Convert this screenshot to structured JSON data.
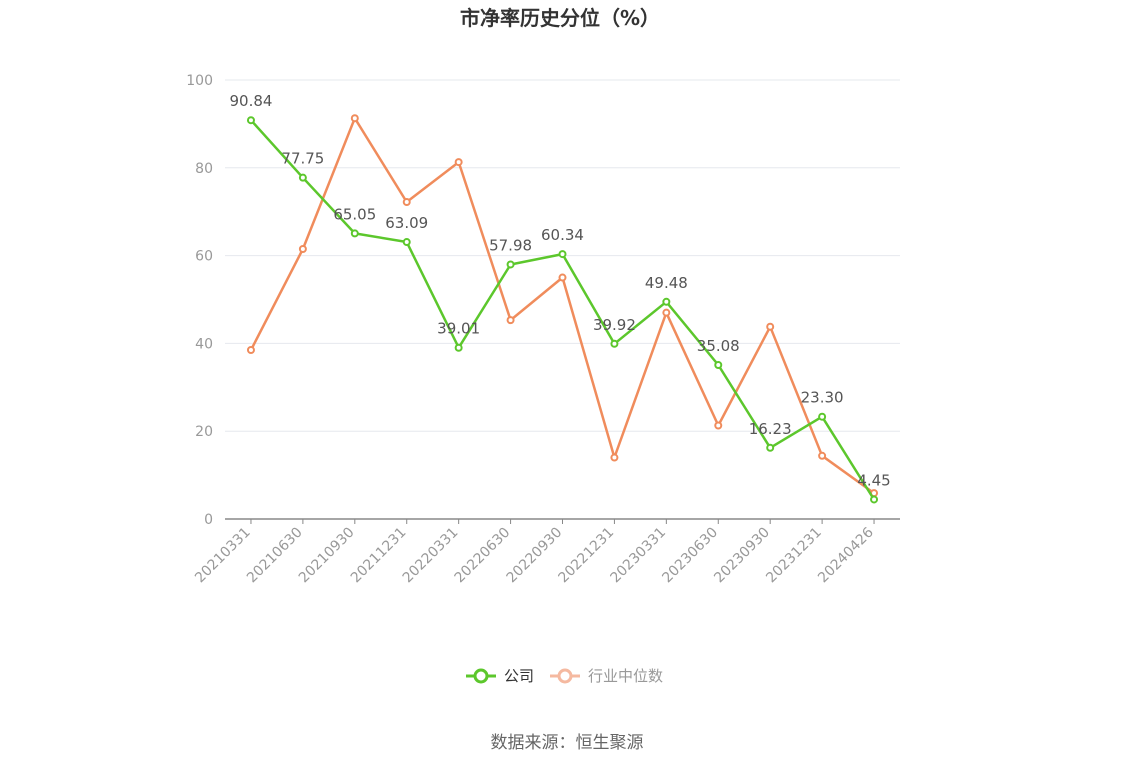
{
  "chart_data": {
    "type": "line",
    "title": "市净率历史分位（%）",
    "categories": [
      "20210331",
      "20210630",
      "20210930",
      "20211231",
      "20220331",
      "20220630",
      "20220930",
      "20221231",
      "20230331",
      "20230630",
      "20230930",
      "20231231",
      "20240426"
    ],
    "series": [
      {
        "name": "公司",
        "color": "#5cc72c",
        "values": [
          90.84,
          77.75,
          65.05,
          63.09,
          39.01,
          57.98,
          60.34,
          39.92,
          49.48,
          35.08,
          16.23,
          23.3,
          4.45
        ],
        "labels": [
          "90.84",
          "77.75",
          "65.05",
          "63.09",
          "39.01",
          "57.98",
          "60.34",
          "39.92",
          "49.48",
          "35.08",
          "16.23",
          "23.30",
          "4.45"
        ]
      },
      {
        "name": "行业中位数",
        "color": "#f08c5c",
        "legend_color": "#f5b9a0",
        "values": [
          38.5,
          61.5,
          91.3,
          72.2,
          81.3,
          45.3,
          55.0,
          14.0,
          47.0,
          21.3,
          43.8,
          14.4,
          5.9
        ]
      }
    ],
    "ylim": [
      0,
      100
    ],
    "yticks": [
      0,
      20,
      40,
      60,
      80,
      100
    ],
    "grid": true,
    "legend": "bottom-center",
    "source": "数据来源：恒生聚源"
  }
}
